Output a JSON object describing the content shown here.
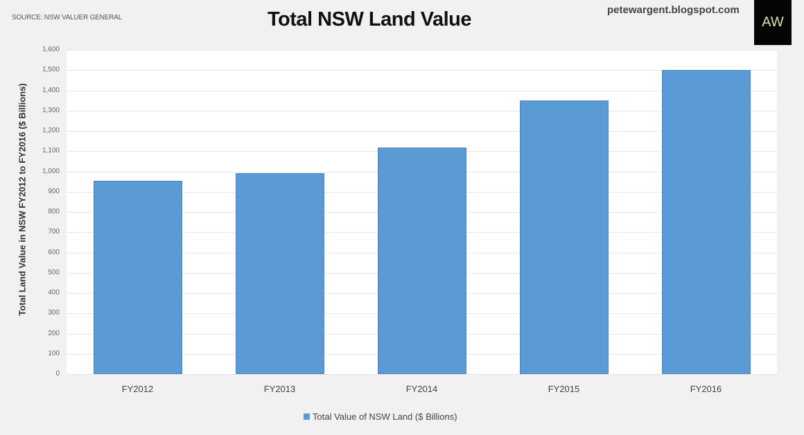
{
  "header": {
    "source": "SOURCE: NSW VALUER GENERAL",
    "title": "Total NSW Land Value",
    "site": "petewargent.blogspot.com",
    "logo_text": "AW"
  },
  "colors": {
    "bar": "#5b9bd5",
    "background": "#f1f1f1",
    "plot_background": "#ffffff"
  },
  "chart_data": {
    "type": "bar",
    "title": "Total NSW Land Value",
    "xlabel": "",
    "ylabel": "Total Land Value in NSW FY2012 to FY2016 ($ Billions)",
    "categories": [
      "FY2012",
      "FY2013",
      "FY2014",
      "FY2015",
      "FY2016"
    ],
    "series": [
      {
        "name": "Total Value of NSW Land ($ Billions)",
        "values": [
          954,
          991,
          1118,
          1350,
          1501
        ]
      }
    ],
    "ylim": [
      0,
      1600
    ],
    "yticks": [
      "0",
      "100",
      "200",
      "300",
      "400",
      "500",
      "600",
      "700",
      "800",
      "900",
      "1,000",
      "1,100",
      "1,200",
      "1,300",
      "1,400",
      "1,500",
      "1,600"
    ],
    "grid": true,
    "legend_position": "bottom",
    "source": "SOURCE: NSW VALUER GENERAL"
  }
}
